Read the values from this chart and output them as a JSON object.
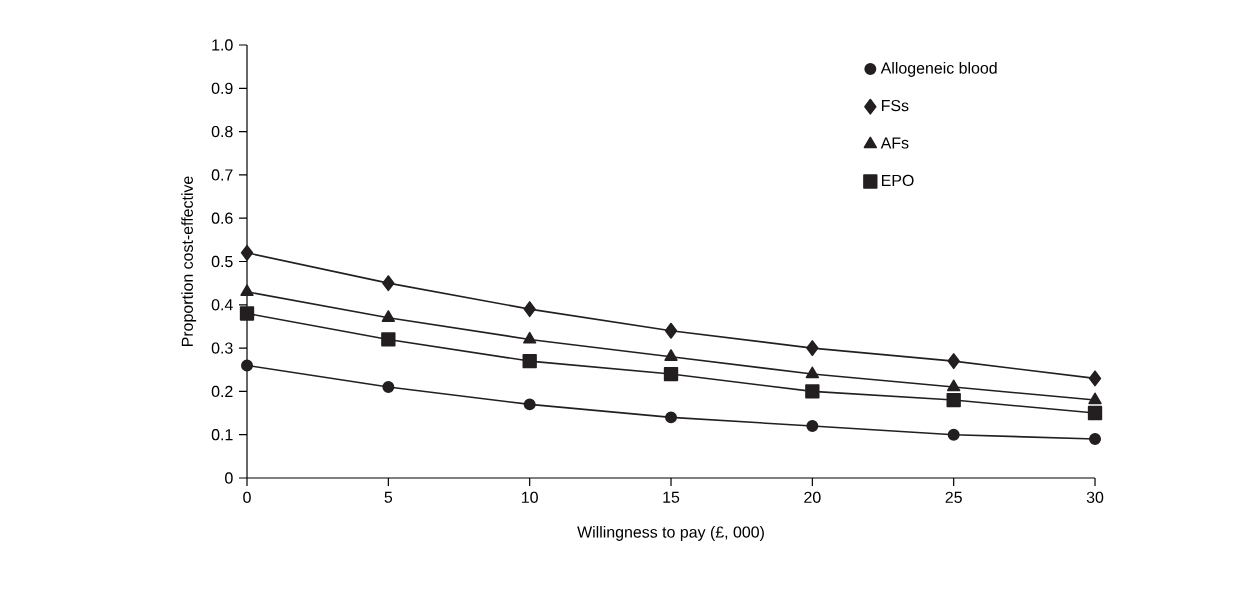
{
  "chart_data": {
    "type": "line",
    "xlabel": "Willingness to pay (£, 000)",
    "ylabel": "Proportion cost-effective",
    "x": [
      0,
      5,
      10,
      15,
      20,
      25,
      30
    ],
    "series": [
      {
        "name": "Allogeneic blood",
        "color": "#231f20",
        "marker": "circle",
        "values": [
          0.26,
          0.21,
          0.17,
          0.14,
          0.12,
          0.1,
          0.09
        ]
      },
      {
        "name": "FSs",
        "color": "#231f20",
        "marker": "diamond",
        "values": [
          0.52,
          0.45,
          0.39,
          0.34,
          0.3,
          0.27,
          0.23
        ]
      },
      {
        "name": "AFs",
        "color": "#231f20",
        "marker": "triangle",
        "values": [
          0.43,
          0.37,
          0.32,
          0.28,
          0.24,
          0.21,
          0.18
        ]
      },
      {
        "name": "EPO",
        "color": "#231f20",
        "marker": "square",
        "values": [
          0.38,
          0.32,
          0.27,
          0.24,
          0.2,
          0.18,
          0.15
        ]
      }
    ],
    "xlim": [
      0,
      30
    ],
    "xticks": [
      0,
      5,
      10,
      15,
      20,
      25,
      30
    ],
    "ylim": [
      0,
      1.0
    ],
    "yticks": [
      {
        "value": 0,
        "label": "0"
      },
      0.1,
      0.2,
      0.3,
      0.4,
      0.5,
      0.6,
      0.7,
      0.8,
      0.9,
      {
        "value": 1.0,
        "label": "1.0"
      }
    ],
    "legend": "top right",
    "line_style": "solid"
  }
}
